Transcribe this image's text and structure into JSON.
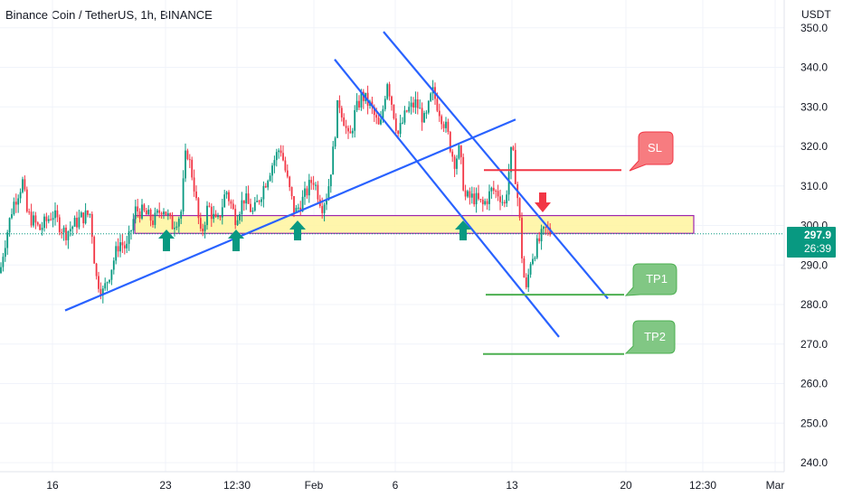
{
  "title": "Binance Coin / TetherUS, 1h, BINANCE",
  "currency": "USDT",
  "price_badge": {
    "price": "297.9",
    "countdown": "26:39",
    "color": "#089981"
  },
  "colors": {
    "bull": "#089981",
    "bear": "#f23645",
    "trend": "#2962ff",
    "zone_fill": "#fff59d",
    "zone_border": "#9c27b0",
    "sl": "#f23645",
    "tp": "#4caf50",
    "arrow_up": "#089981",
    "arrow_down": "#f23645"
  },
  "labels": {
    "sl": "SL",
    "tp1": "TP1",
    "tp2": "TP2"
  },
  "chart_data": {
    "type": "candlestick",
    "title": "Binance Coin / TetherUS, 1h, BINANCE",
    "ylim": [
      238,
      352
    ],
    "y_ticks": [
      240.0,
      250.0,
      260.0,
      270.0,
      280.0,
      290.0,
      300.0,
      310.0,
      320.0,
      330.0,
      340.0,
      350.0
    ],
    "y_tick_labels": [
      "240.0",
      "250.0",
      "260.0",
      "270.0",
      "280.0",
      "290.0",
      "300.0",
      "310.0",
      "320.0",
      "330.0",
      "340.0",
      "350.0"
    ],
    "x_tick_labels": [
      "16",
      "23",
      "12:30",
      "Feb",
      "6",
      "13",
      "20",
      "12:30",
      "Mar"
    ],
    "price_path": [
      [
        0,
        288
      ],
      [
        4,
        294
      ],
      [
        14,
        305
      ],
      [
        25,
        311
      ],
      [
        30,
        303
      ],
      [
        44,
        299
      ],
      [
        58,
        303
      ],
      [
        72,
        298
      ],
      [
        90,
        302
      ],
      [
        100,
        303
      ],
      [
        106,
        287
      ],
      [
        114,
        283
      ],
      [
        124,
        290
      ],
      [
        132,
        296
      ],
      [
        140,
        294
      ],
      [
        150,
        304
      ],
      [
        160,
        303
      ],
      [
        170,
        301
      ],
      [
        180,
        305
      ],
      [
        190,
        300
      ],
      [
        200,
        303
      ],
      [
        206,
        320
      ],
      [
        214,
        311
      ],
      [
        222,
        297
      ],
      [
        230,
        305
      ],
      [
        240,
        300
      ],
      [
        250,
        309
      ],
      [
        260,
        302
      ],
      [
        270,
        307
      ],
      [
        280,
        303
      ],
      [
        290,
        309
      ],
      [
        300,
        315
      ],
      [
        310,
        320
      ],
      [
        318,
        311
      ],
      [
        326,
        303
      ],
      [
        336,
        307
      ],
      [
        346,
        312
      ],
      [
        356,
        305
      ],
      [
        362,
        308
      ],
      [
        368,
        318
      ],
      [
        374,
        332
      ],
      [
        380,
        327
      ],
      [
        386,
        321
      ],
      [
        392,
        328
      ],
      [
        400,
        333
      ],
      [
        410,
        330
      ],
      [
        420,
        324
      ],
      [
        428,
        337
      ],
      [
        434,
        330
      ],
      [
        440,
        323
      ],
      [
        450,
        329
      ],
      [
        460,
        331
      ],
      [
        470,
        326
      ],
      [
        478,
        334
      ],
      [
        486,
        329
      ],
      [
        494,
        324
      ],
      [
        502,
        316
      ],
      [
        508,
        319
      ],
      [
        514,
        307
      ],
      [
        524,
        307
      ],
      [
        534,
        305
      ],
      [
        544,
        309
      ],
      [
        552,
        308
      ],
      [
        558,
        305
      ],
      [
        566,
        320
      ],
      [
        570,
        312
      ],
      [
        574,
        303
      ],
      [
        578,
        289
      ],
      [
        582,
        283
      ],
      [
        586,
        291
      ],
      [
        592,
        294
      ],
      [
        598,
        297
      ],
      [
        604,
        299
      ],
      [
        610,
        298
      ]
    ],
    "annotations": {
      "support_zone": [
        298.0,
        302.5
      ],
      "stop_loss": 314.0,
      "take_profit_1": 282.5,
      "take_profit_2": 267.5,
      "current_price": 297.9,
      "ascending_trendline": [
        [
          72,
          278.5
        ],
        [
          570,
          326.8
        ]
      ],
      "descending_channel_upper": [
        [
          424,
          349
        ],
        [
          672,
          281.5
        ]
      ],
      "descending_channel_lower": [
        [
          370,
          342
        ],
        [
          618,
          271.8
        ]
      ]
    }
  }
}
